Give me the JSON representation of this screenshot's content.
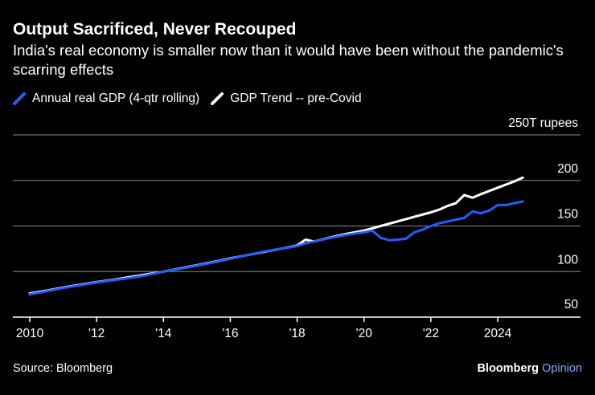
{
  "header": {
    "title": "Output Sacrificed, Never Recouped",
    "subtitle": "India's real economy is smaller now than it would have been without the pandemic's scarring effects"
  },
  "footer": {
    "source": "Source: Bloomberg",
    "brand_main": "Bloomberg",
    "brand_accent": "Opinion"
  },
  "colors": {
    "background": "#000000",
    "gdp_line": "#1f5eff",
    "trend_line": "#ffffff",
    "grid": "#8a8a8a",
    "brand_accent": "#7fa7ff"
  },
  "chart_data": {
    "type": "line",
    "title": "Output Sacrificed, Never Recouped",
    "subtitle": "India's real economy is smaller now than it would have been without the pandemic's scarring effects",
    "xlabel": "",
    "ylabel": "",
    "y_unit_label": "250T rupees",
    "xlim": [
      2010,
      2025.6
    ],
    "ylim": [
      50,
      250
    ],
    "y_ticks": [
      50,
      100,
      150,
      200,
      250
    ],
    "y_tick_labels": [
      "50",
      "100",
      "150",
      "200",
      "250T rupees"
    ],
    "x_ticks": [
      2010,
      2012,
      2014,
      2016,
      2018,
      2020,
      2022,
      2024
    ],
    "x_tick_labels": [
      "2010",
      "'12",
      "'14",
      "'16",
      "'18",
      "'20",
      "'22",
      "2024"
    ],
    "grid": true,
    "legend_position": "top-left",
    "series": [
      {
        "name": "Annual real GDP (4-qtr rolling)",
        "color": "#1f5eff",
        "x": [
          2010.0,
          2010.5,
          2011.0,
          2011.5,
          2012.0,
          2012.5,
          2013.0,
          2013.5,
          2014.0,
          2014.5,
          2015.0,
          2015.5,
          2016.0,
          2016.5,
          2017.0,
          2017.5,
          2018.0,
          2018.25,
          2018.5,
          2019.0,
          2019.5,
          2020.0,
          2020.25,
          2020.5,
          2020.75,
          2021.0,
          2021.25,
          2021.5,
          2021.75,
          2022.0,
          2022.25,
          2022.5,
          2022.75,
          2023.0,
          2023.25,
          2023.5,
          2023.75,
          2024.0,
          2024.25,
          2024.5,
          2024.75
        ],
        "y": [
          75,
          78.5,
          82,
          85,
          88,
          90.5,
          93,
          96,
          100,
          103,
          106.5,
          110,
          114,
          118,
          122,
          125,
          128,
          131,
          133,
          137,
          140.5,
          143,
          145,
          137,
          134.5,
          135,
          136,
          143,
          146,
          150,
          153,
          155,
          157,
          159,
          166,
          164,
          167,
          173,
          173,
          175,
          177
        ]
      },
      {
        "name": "GDP Trend -- pre-Covid",
        "color": "#ffffff",
        "x": [
          2010.0,
          2010.5,
          2011.0,
          2011.5,
          2012.0,
          2012.5,
          2013.0,
          2013.5,
          2014.0,
          2014.5,
          2015.0,
          2015.5,
          2016.0,
          2016.5,
          2017.0,
          2017.5,
          2018.0,
          2018.25,
          2018.5,
          2019.0,
          2019.5,
          2020.0,
          2020.5,
          2021.0,
          2021.5,
          2022.0,
          2022.25,
          2022.5,
          2022.75,
          2023.0,
          2023.25,
          2023.5,
          2024.0,
          2024.5,
          2024.75
        ],
        "y": [
          76,
          79,
          82.5,
          85.5,
          88.5,
          91,
          94,
          97,
          100,
          103.5,
          107,
          110.5,
          114.5,
          118,
          121.5,
          125,
          128.5,
          135,
          133,
          137.5,
          141.5,
          145,
          150,
          155,
          160,
          165,
          168,
          172,
          175,
          184,
          181,
          185,
          192,
          199,
          203
        ]
      }
    ]
  }
}
